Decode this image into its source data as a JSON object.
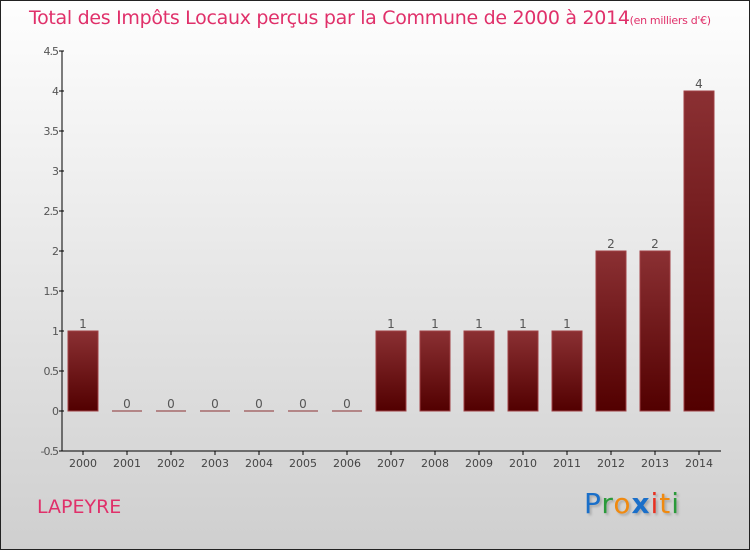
{
  "chart_data": {
    "type": "bar",
    "title": "Total des Impôts Locaux perçus par la Commune de 2000 à 2014",
    "subtitle": "(en milliers d'€)",
    "categories": [
      "2000",
      "2001",
      "2002",
      "2003",
      "2004",
      "2005",
      "2006",
      "2007",
      "2008",
      "2009",
      "2010",
      "2011",
      "2012",
      "2013",
      "2014"
    ],
    "values": [
      1,
      0,
      0,
      0,
      0,
      0,
      0,
      1,
      1,
      1,
      1,
      1,
      2,
      2,
      4
    ],
    "ylim": [
      -0.5,
      4.5
    ],
    "yticks": [
      "-0.5",
      "0",
      "0.5",
      "1",
      "1.5",
      "2",
      "2.5",
      "3",
      "3.5",
      "4",
      "4.5"
    ],
    "xlabel": "",
    "ylabel": "",
    "bar_color_top": "#8b3033",
    "bar_color_bottom": "#520000"
  },
  "commune": "LAPEYRE",
  "logo": "Proxiti"
}
